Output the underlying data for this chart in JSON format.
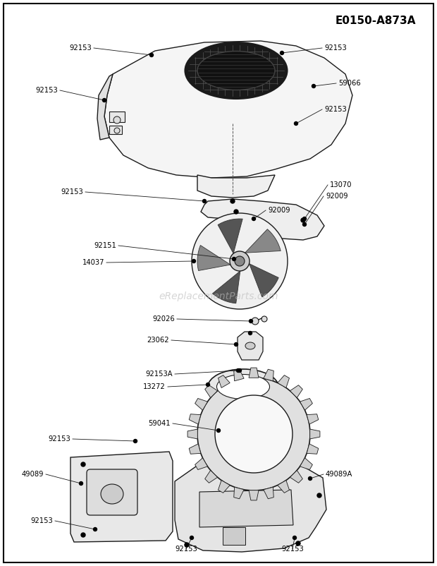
{
  "title": "E0150-A873A",
  "background_color": "#ffffff",
  "text_color": "#000000",
  "watermark": "eReplacementParts.com",
  "line_color": "#1a1a1a",
  "fill_light": "#f0f0f0",
  "fill_dark": "#c0c0c0"
}
